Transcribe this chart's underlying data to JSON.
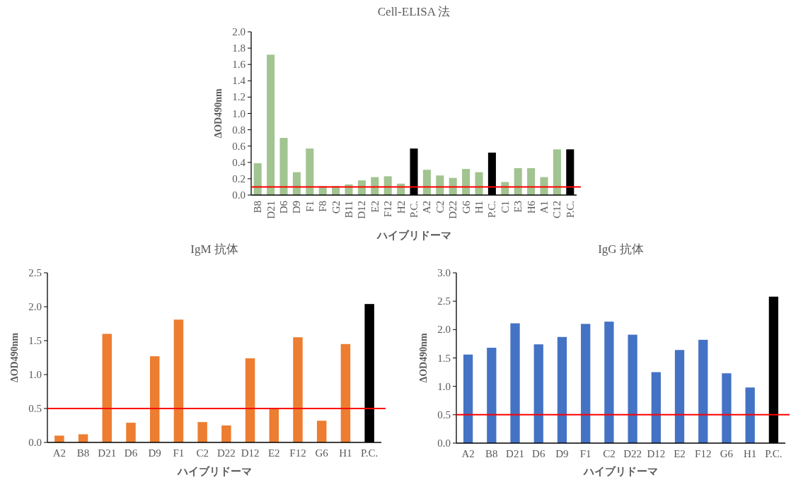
{
  "chart_data": [
    {
      "type": "bar",
      "title": "Cell-ELISA 法",
      "xlabel": "ハイブリドーマ",
      "ylabel": "ΔOD490nm",
      "categories": [
        "B8",
        "D21",
        "D6",
        "D9",
        "F1",
        "F8",
        "G2",
        "B11",
        "D12",
        "E2",
        "F12",
        "H2",
        "P.C.",
        "A2",
        "C2",
        "D22",
        "G6",
        "H1",
        "P.C.",
        "C1",
        "E3",
        "H6",
        "A1",
        "C12",
        "P.C."
      ],
      "values": [
        0.39,
        1.72,
        0.7,
        0.28,
        0.57,
        0.11,
        0.11,
        0.13,
        0.18,
        0.22,
        0.23,
        0.14,
        0.57,
        0.31,
        0.24,
        0.21,
        0.32,
        0.28,
        0.52,
        0.16,
        0.33,
        0.33,
        0.22,
        0.56,
        0.56
      ],
      "colors": [
        "#a1c490",
        "#a1c490",
        "#a1c490",
        "#a1c490",
        "#a1c490",
        "#a1c490",
        "#a1c490",
        "#a1c490",
        "#a1c490",
        "#a1c490",
        "#a1c490",
        "#a1c490",
        "#000000",
        "#a1c490",
        "#a1c490",
        "#a1c490",
        "#a1c490",
        "#a1c490",
        "#000000",
        "#a1c490",
        "#a1c490",
        "#a1c490",
        "#a1c490",
        "#a1c490",
        "#000000"
      ],
      "ylim": [
        0,
        2.0
      ],
      "yticks": [
        {
          "value": 0,
          "label": "0.0"
        },
        0.2,
        0.4,
        0.6,
        0.8,
        {
          "value": 1,
          "label": "1.0"
        },
        1.2,
        1.4,
        1.6,
        1.8,
        {
          "value": 2,
          "label": "2.0"
        }
      ],
      "ref_lines": [
        {
          "axis": "y",
          "value": 0.1,
          "color": "#ff0000"
        }
      ]
    },
    {
      "type": "bar",
      "title": "IgM 抗体",
      "xlabel": "ハイブリドーマ",
      "ylabel": "ΔOD490nm",
      "categories": [
        "A2",
        "B8",
        "D21",
        "D6",
        "D9",
        "F1",
        "C2",
        "D22",
        "D12",
        "E2",
        "F12",
        "G6",
        "H1",
        "P.C."
      ],
      "values": [
        0.1,
        0.12,
        1.6,
        0.29,
        1.27,
        1.81,
        0.3,
        0.25,
        1.24,
        0.5,
        1.55,
        0.32,
        1.45,
        2.04
      ],
      "colors": [
        "#ed7d31",
        "#ed7d31",
        "#ed7d31",
        "#ed7d31",
        "#ed7d31",
        "#ed7d31",
        "#ed7d31",
        "#ed7d31",
        "#ed7d31",
        "#ed7d31",
        "#ed7d31",
        "#ed7d31",
        "#ed7d31",
        "#000000"
      ],
      "ylim": [
        0,
        2.5
      ],
      "yticks": [
        {
          "value": 0,
          "label": "0.0"
        },
        0.5,
        {
          "value": 1,
          "label": "1.0"
        },
        1.5,
        {
          "value": 2,
          "label": "2.0"
        },
        2.5
      ],
      "ref_lines": [
        {
          "axis": "y",
          "value": 0.5,
          "color": "#ff0000"
        }
      ]
    },
    {
      "type": "bar",
      "title": "IgG 抗体",
      "xlabel": "ハイブリドーマ",
      "ylabel": "ΔOD490nm",
      "categories": [
        "A2",
        "B8",
        "D21",
        "D6",
        "D9",
        "F1",
        "C2",
        "D22",
        "D12",
        "E2",
        "F12",
        "G6",
        "H1",
        "P.C."
      ],
      "values": [
        1.56,
        1.68,
        2.11,
        1.74,
        1.87,
        2.1,
        2.14,
        1.91,
        1.25,
        1.64,
        1.82,
        1.23,
        0.98,
        2.58
      ],
      "colors": [
        "#4472c4",
        "#4472c4",
        "#4472c4",
        "#4472c4",
        "#4472c4",
        "#4472c4",
        "#4472c4",
        "#4472c4",
        "#4472c4",
        "#4472c4",
        "#4472c4",
        "#4472c4",
        "#4472c4",
        "#000000"
      ],
      "ylim": [
        0,
        3.0
      ],
      "yticks": [
        {
          "value": 0,
          "label": "0.0"
        },
        0.5,
        {
          "value": 1,
          "label": "1.0"
        },
        1.5,
        {
          "value": 2,
          "label": "2.0"
        },
        2.5,
        {
          "value": 3,
          "label": "3.0"
        }
      ],
      "ref_lines": [
        {
          "axis": "y",
          "value": 0.5,
          "color": "#ff0000"
        }
      ]
    }
  ]
}
